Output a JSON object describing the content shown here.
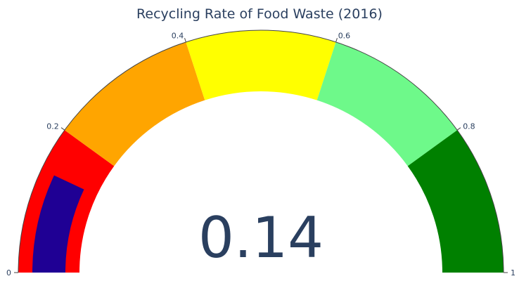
{
  "chart_data": {
    "type": "gauge",
    "title": "Recycling Rate of Food Waste (2016)",
    "value": 0.14,
    "value_label": "0.14",
    "range": [
      0,
      1
    ],
    "bar_color": "#1f0094",
    "steps": [
      {
        "range": [
          0,
          0.2
        ],
        "color": "#ff0000"
      },
      {
        "range": [
          0.2,
          0.4
        ],
        "color": "#ffa500"
      },
      {
        "range": [
          0.4,
          0.6
        ],
        "color": "#ffff00"
      },
      {
        "range": [
          0.6,
          0.8
        ],
        "color": "#6ef98a"
      },
      {
        "range": [
          0.8,
          1.0
        ],
        "color": "#008000"
      }
    ],
    "ticks": [
      {
        "value": 0,
        "label": "0"
      },
      {
        "value": 0.2,
        "label": "0.2"
      },
      {
        "value": 0.4,
        "label": "0.4"
      },
      {
        "value": 0.6,
        "label": "0.6"
      },
      {
        "value": 0.8,
        "label": "0.8"
      },
      {
        "value": 1,
        "label": "1"
      }
    ]
  }
}
